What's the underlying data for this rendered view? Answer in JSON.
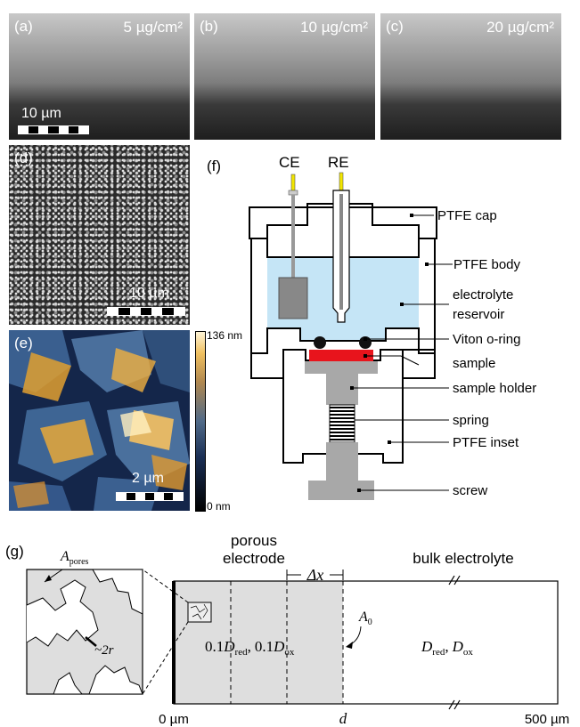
{
  "panel_a": {
    "label": "(a)",
    "concentration": "5 µg/cm²",
    "scalebar": "10 µm"
  },
  "panel_b": {
    "label": "(b)",
    "concentration": "10 µg/cm²"
  },
  "panel_c": {
    "label": "(c)",
    "concentration": "20 µg/cm²"
  },
  "panel_d": {
    "label": "(d)",
    "scalebar": "10 µm"
  },
  "panel_e": {
    "label": "(e)",
    "scalebar": "2 µm",
    "colorbar_max": "136 nm",
    "colorbar_min": "0 nm"
  },
  "panel_f": {
    "label": "(f)",
    "electrodes": {
      "ce": "CE",
      "re": "RE"
    },
    "callouts": {
      "ptfe_cap": "PTFE cap",
      "ptfe_body": "PTFE body",
      "electrolyte_1": "electrolyte",
      "electrolyte_2": "reservoir",
      "oring": "Viton o-ring",
      "sample": "sample",
      "sample_holder": "sample holder",
      "spring": "spring",
      "inset": "PTFE inset",
      "screw": "screw"
    }
  },
  "panel_g": {
    "label": "(g)",
    "header_porous_1": "porous",
    "header_porous_2": "electrode",
    "header_bulk": "bulk electrolyte",
    "delta_x": "Δx",
    "a_pores": "A",
    "a_pores_sub": "pores",
    "two_r": "~2r",
    "a0": "A",
    "a0_sub": "0",
    "porous_coeff_1": "0.1",
    "d_symbol": "D",
    "red_sub": "red",
    "ox_sub": "ox",
    "comma": ",",
    "porous_coeff_2": "0.1",
    "bulk_d_red": "D",
    "bulk_d_ox": "D",
    "axis_start": "0 µm",
    "axis_d": "d",
    "axis_end": "500 µm"
  },
  "colors": {
    "electrolyte": "#c5e5f6",
    "sample": "#e8141c",
    "holder": "#a8a8a8",
    "electrode_wire_tip": "#f2e600",
    "porous_fill": "#dedede",
    "afm_high": "#f0b040",
    "afm_low": "#1a2f55"
  }
}
